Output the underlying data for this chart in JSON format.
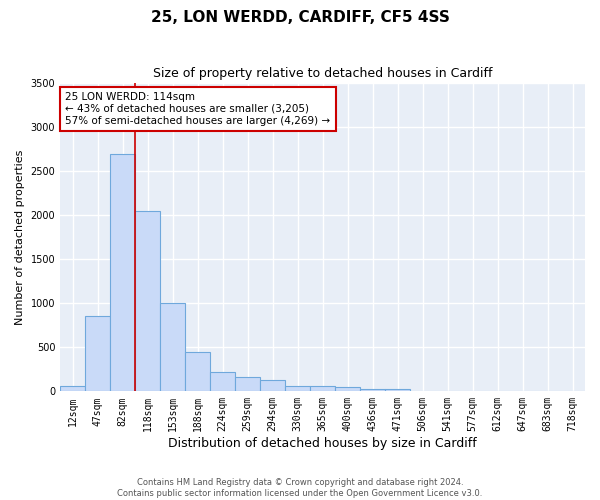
{
  "title": "25, LON WERDD, CARDIFF, CF5 4SS",
  "subtitle": "Size of property relative to detached houses in Cardiff",
  "xlabel": "Distribution of detached houses by size in Cardiff",
  "ylabel": "Number of detached properties",
  "bar_categories": [
    "12sqm",
    "47sqm",
    "82sqm",
    "118sqm",
    "153sqm",
    "188sqm",
    "224sqm",
    "259sqm",
    "294sqm",
    "330sqm",
    "365sqm",
    "400sqm",
    "436sqm",
    "471sqm",
    "506sqm",
    "541sqm",
    "577sqm",
    "612sqm",
    "647sqm",
    "683sqm",
    "718sqm"
  ],
  "bar_values": [
    60,
    850,
    2700,
    2050,
    1000,
    450,
    220,
    160,
    130,
    65,
    55,
    50,
    30,
    25,
    0,
    0,
    0,
    0,
    0,
    0,
    0
  ],
  "bar_color": "#c9daf8",
  "bar_edge_color": "#6fa8dc",
  "vline_x_pos": 2.5,
  "vline_color": "#cc0000",
  "annotation_text": "25 LON WERDD: 114sqm\n← 43% of detached houses are smaller (3,205)\n57% of semi-detached houses are larger (4,269) →",
  "annotation_box_color": "#ffffff",
  "annotation_box_edge": "#cc0000",
  "ylim": [
    0,
    3500
  ],
  "yticks": [
    0,
    500,
    1000,
    1500,
    2000,
    2500,
    3000,
    3500
  ],
  "background_color": "#e8eef7",
  "grid_color": "#ffffff",
  "fig_background": "#ffffff",
  "footer_line1": "Contains HM Land Registry data © Crown copyright and database right 2024.",
  "footer_line2": "Contains public sector information licensed under the Open Government Licence v3.0.",
  "title_fontsize": 11,
  "subtitle_fontsize": 9,
  "xlabel_fontsize": 9,
  "ylabel_fontsize": 8,
  "tick_fontsize": 7,
  "annotation_fontsize": 7.5,
  "footer_fontsize": 6
}
